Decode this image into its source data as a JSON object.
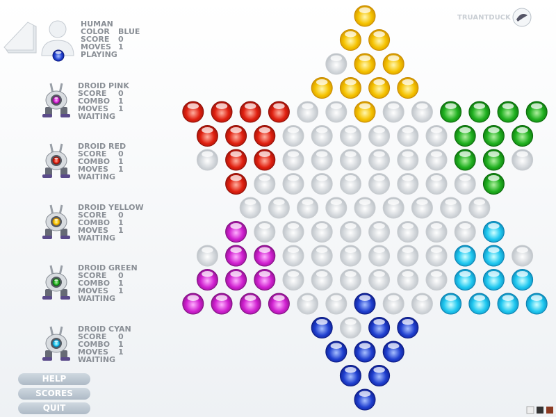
{
  "logo": "TRUANTDUCK",
  "players": [
    {
      "name": "HUMAN",
      "stats": [
        {
          "label": "COLOR",
          "value": "BLUE"
        },
        {
          "label": "SCORE",
          "value": 0
        },
        {
          "label": "MOVES",
          "value": 1
        }
      ],
      "status": "PLAYING"
    },
    {
      "name": "DROID PINK",
      "stats": [
        {
          "label": "SCORE",
          "value": 0
        },
        {
          "label": "COMBO",
          "value": 1
        },
        {
          "label": "MOVES",
          "value": 1
        }
      ],
      "status": "WAITING"
    },
    {
      "name": "DROID RED",
      "stats": [
        {
          "label": "SCORE",
          "value": 0
        },
        {
          "label": "COMBO",
          "value": 1
        },
        {
          "label": "MOVES",
          "value": 1
        }
      ],
      "status": "WAITING"
    },
    {
      "name": "DROID YELLOW",
      "stats": [
        {
          "label": "SCORE",
          "value": 0
        },
        {
          "label": "COMBO",
          "value": 1
        },
        {
          "label": "MOVES",
          "value": 1
        }
      ],
      "status": "WAITING"
    },
    {
      "name": "DROID GREEN",
      "stats": [
        {
          "label": "SCORE",
          "value": 0
        },
        {
          "label": "COMBO",
          "value": 1
        },
        {
          "label": "MOVES",
          "value": 1
        }
      ],
      "status": "WAITING"
    },
    {
      "name": "DROID CYAN",
      "stats": [
        {
          "label": "SCORE",
          "value": 0
        },
        {
          "label": "COMBO",
          "value": 1
        },
        {
          "label": "MOVES",
          "value": 1
        }
      ],
      "status": "WAITING"
    }
  ],
  "buttons": [
    "HELP",
    "SCORES",
    "QUIT"
  ]
}
